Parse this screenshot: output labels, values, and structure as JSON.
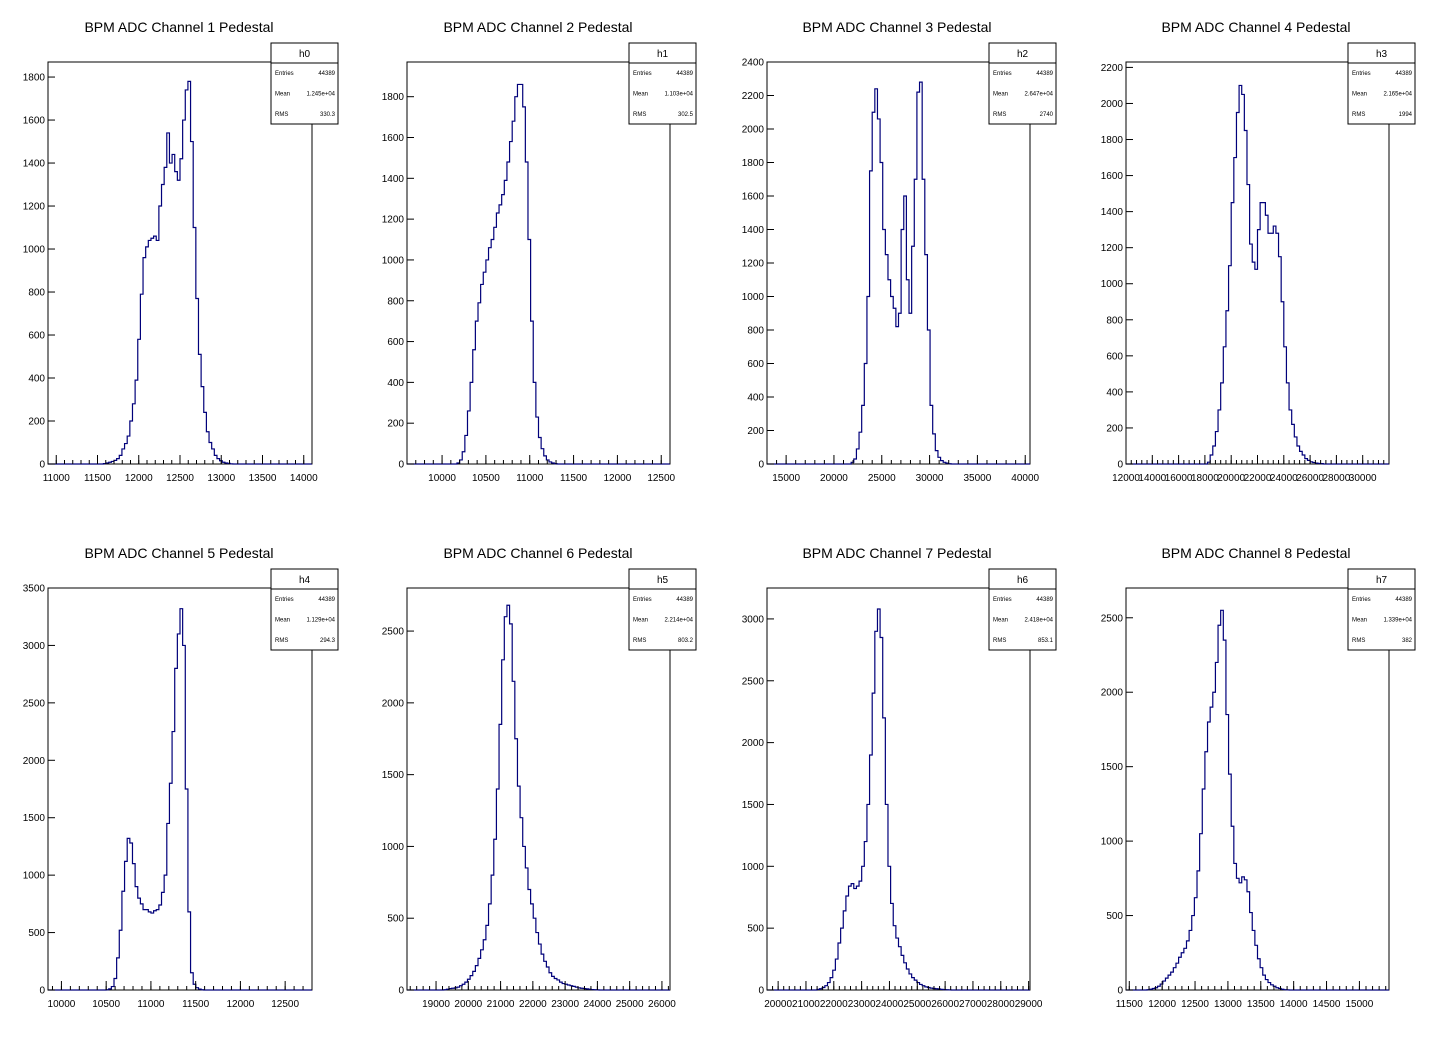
{
  "chart_data": [
    {
      "type": "histogram",
      "title": "BPM ADC Channel 1 Pedestal",
      "stats": {
        "name": "h0",
        "rows": [
          [
            "Entries",
            "44389"
          ],
          [
            "Mean",
            "1.245e+04"
          ],
          [
            "RMS",
            "330.3"
          ]
        ]
      },
      "xlim": [
        10900,
        14100
      ],
      "ylim": [
        0,
        1870
      ],
      "xticks": [
        11000,
        11500,
        12000,
        12500,
        13000,
        13500,
        14000
      ],
      "xtick_labels": [
        "11000",
        "11500",
        "12000",
        "12500",
        "13000",
        "13500",
        "14000"
      ],
      "yticks": [
        0,
        200,
        400,
        600,
        800,
        1000,
        1200,
        1400,
        1600,
        1800
      ],
      "bin_width": 32,
      "values": [
        0,
        0,
        0,
        0,
        0,
        0,
        0,
        0,
        0,
        0,
        0,
        0,
        0,
        0,
        0,
        0,
        0,
        0,
        0,
        0,
        0,
        2,
        5,
        8,
        12,
        17,
        25,
        40,
        70,
        95,
        130,
        200,
        280,
        390,
        580,
        790,
        960,
        1010,
        1040,
        1050,
        1060,
        1040,
        1200,
        1300,
        1380,
        1540,
        1400,
        1440,
        1360,
        1320,
        1420,
        1600,
        1740,
        1780,
        1500,
        1100,
        770,
        510,
        360,
        240,
        150,
        100,
        70,
        40,
        25,
        15,
        8,
        5,
        3,
        1,
        0,
        0,
        0,
        0,
        0,
        0,
        0,
        0,
        0,
        0,
        0,
        0,
        0,
        0,
        0,
        0,
        0,
        0,
        0,
        0,
        0,
        0,
        0,
        0,
        0,
        0,
        0,
        0,
        0,
        0
      ]
    },
    {
      "type": "histogram",
      "title": "BPM ADC Channel 2 Pedestal",
      "stats": {
        "name": "h1",
        "rows": [
          [
            "Entries",
            "44389"
          ],
          [
            "Mean",
            "1.103e+04"
          ],
          [
            "RMS",
            "302.5"
          ]
        ]
      },
      "xlim": [
        9600,
        12600
      ],
      "ylim": [
        0,
        1970
      ],
      "xticks": [
        10000,
        10500,
        11000,
        11500,
        12000,
        12500
      ],
      "xtick_labels": [
        "10000",
        "10500",
        "11000",
        "11500",
        "12000",
        "12500"
      ],
      "yticks": [
        0,
        200,
        400,
        600,
        800,
        1000,
        1200,
        1400,
        1600,
        1800
      ],
      "bin_width": 30,
      "values": [
        0,
        0,
        0,
        0,
        0,
        0,
        0,
        0,
        0,
        0,
        0,
        0,
        0,
        0,
        0,
        0,
        0,
        0,
        0,
        5,
        20,
        60,
        140,
        260,
        400,
        560,
        700,
        790,
        880,
        940,
        1000,
        1060,
        1100,
        1160,
        1230,
        1270,
        1320,
        1390,
        1480,
        1580,
        1680,
        1800,
        1860,
        1860,
        1750,
        1480,
        1100,
        700,
        400,
        230,
        130,
        75,
        40,
        20,
        10,
        5,
        2,
        0,
        0,
        0,
        0,
        0,
        0,
        0,
        0,
        0,
        0,
        0,
        0,
        0,
        0,
        0,
        0,
        0,
        0,
        0,
        0,
        0,
        0,
        0,
        0,
        0,
        0,
        0,
        0,
        0,
        0,
        0,
        0,
        0,
        0,
        0,
        0,
        0,
        0,
        0,
        0,
        0,
        0,
        0
      ]
    },
    {
      "type": "histogram",
      "title": "BPM ADC Channel 3 Pedestal",
      "stats": {
        "name": "h2",
        "rows": [
          [
            "Entries",
            "44389"
          ],
          [
            "Mean",
            "2.647e+04"
          ],
          [
            "RMS",
            "2740"
          ]
        ]
      },
      "xlim": [
        13000,
        40500
      ],
      "ylim": [
        0,
        2400
      ],
      "xticks": [
        15000,
        20000,
        25000,
        30000,
        35000,
        40000
      ],
      "xtick_labels": [
        "15000",
        "20000",
        "25000",
        "30000",
        "35000",
        "40000"
      ],
      "yticks": [
        0,
        200,
        400,
        600,
        800,
        1000,
        1200,
        1400,
        1600,
        1800,
        2000,
        2200,
        2400
      ],
      "bin_width": 275,
      "values": [
        0,
        0,
        0,
        0,
        0,
        0,
        0,
        0,
        0,
        0,
        0,
        0,
        0,
        0,
        0,
        0,
        0,
        0,
        0,
        0,
        0,
        0,
        0,
        0,
        0,
        0,
        0,
        0,
        0,
        0,
        0,
        0,
        10,
        30,
        90,
        190,
        350,
        600,
        1000,
        1750,
        2100,
        2240,
        2060,
        1800,
        1400,
        1250,
        1100,
        1000,
        930,
        820,
        900,
        1400,
        1600,
        1100,
        900,
        1300,
        1700,
        2220,
        2280,
        1700,
        1250,
        800,
        350,
        180,
        80,
        40,
        20,
        10,
        5,
        2,
        0,
        0,
        0,
        0,
        0,
        0,
        0,
        0,
        0,
        0,
        0,
        0,
        0,
        0,
        0,
        0,
        0,
        0,
        0,
        0,
        0,
        0,
        0,
        0,
        0,
        0,
        0,
        0,
        0,
        0
      ]
    },
    {
      "type": "histogram",
      "title": "BPM ADC Channel 4 Pedestal",
      "stats": {
        "name": "h3",
        "rows": [
          [
            "Entries",
            "44389"
          ],
          [
            "Mean",
            "2.165e+04"
          ],
          [
            "RMS",
            "1994"
          ]
        ]
      },
      "xlim": [
        12000,
        32000
      ],
      "ylim": [
        0,
        2230
      ],
      "xticks": [
        12000,
        14000,
        16000,
        18000,
        20000,
        22000,
        24000,
        26000,
        28000,
        30000
      ],
      "xtick_labels": [
        "12000",
        "14000",
        "16000",
        "18000",
        "20000",
        "22000",
        "24000",
        "26000",
        "28000",
        "30000"
      ],
      "yticks": [
        0,
        200,
        400,
        600,
        800,
        1000,
        1200,
        1400,
        1600,
        1800,
        2000,
        2200
      ],
      "bin_width": 200,
      "values": [
        0,
        0,
        0,
        0,
        0,
        0,
        0,
        0,
        0,
        0,
        0,
        0,
        0,
        0,
        0,
        0,
        0,
        0,
        0,
        0,
        0,
        0,
        0,
        0,
        0,
        0,
        0,
        0,
        0,
        0,
        0,
        10,
        50,
        100,
        180,
        300,
        450,
        650,
        850,
        1100,
        1450,
        1700,
        1950,
        2100,
        2050,
        1850,
        1550,
        1220,
        1120,
        1080,
        1300,
        1450,
        1450,
        1380,
        1280,
        1280,
        1320,
        1280,
        1150,
        900,
        650,
        450,
        300,
        220,
        150,
        100,
        70,
        50,
        30,
        20,
        12,
        8,
        5,
        3,
        2,
        0,
        0,
        0,
        0,
        0,
        0,
        0,
        0,
        0,
        0,
        0,
        0,
        0,
        0,
        0,
        0,
        0,
        0,
        0,
        0,
        0,
        0,
        0,
        0,
        0
      ]
    },
    {
      "type": "histogram",
      "title": "BPM ADC Channel 5 Pedestal",
      "stats": {
        "name": "h4",
        "rows": [
          [
            "Entries",
            "44389"
          ],
          [
            "Mean",
            "1.129e+04"
          ],
          [
            "RMS",
            "294.3"
          ]
        ]
      },
      "xlim": [
        9850,
        12800
      ],
      "ylim": [
        0,
        3500
      ],
      "xticks": [
        10000,
        10500,
        11000,
        11500,
        12000,
        12500
      ],
      "xtick_labels": [
        "10000",
        "10500",
        "11000",
        "11500",
        "12000",
        "12500"
      ],
      "yticks": [
        0,
        500,
        1000,
        1500,
        2000,
        2500,
        3000,
        3500
      ],
      "bin_width": 29.5,
      "values": [
        0,
        0,
        0,
        0,
        0,
        0,
        0,
        0,
        0,
        0,
        0,
        0,
        0,
        0,
        0,
        0,
        0,
        0,
        0,
        0,
        0,
        0,
        2,
        10,
        30,
        100,
        280,
        520,
        860,
        1120,
        1320,
        1280,
        1100,
        900,
        800,
        750,
        700,
        700,
        680,
        670,
        690,
        700,
        740,
        850,
        1000,
        1450,
        1800,
        2250,
        2800,
        3100,
        3320,
        3000,
        1750,
        680,
        150,
        50,
        20,
        8,
        2,
        0,
        0,
        0,
        0,
        0,
        0,
        0,
        0,
        0,
        0,
        0,
        0,
        0,
        0,
        0,
        0,
        0,
        0,
        0,
        0,
        0,
        0,
        0,
        0,
        0,
        0,
        0,
        0,
        0,
        0,
        0,
        0,
        0,
        0,
        0,
        0,
        0,
        0,
        0,
        0,
        0
      ]
    },
    {
      "type": "histogram",
      "title": "BPM ADC Channel 6 Pedestal",
      "stats": {
        "name": "h5",
        "rows": [
          [
            "Entries",
            "44389"
          ],
          [
            "Mean",
            "2.214e+04"
          ],
          [
            "RMS",
            "803.2"
          ]
        ]
      },
      "xlim": [
        18100,
        26250
      ],
      "ylim": [
        0,
        2800
      ],
      "xticks": [
        19000,
        20000,
        21000,
        22000,
        23000,
        24000,
        25000,
        26000
      ],
      "xtick_labels": [
        "19000",
        "20000",
        "21000",
        "22000",
        "23000",
        "24000",
        "25000",
        "26000"
      ],
      "yticks": [
        0,
        500,
        1000,
        1500,
        2000,
        2500
      ],
      "bin_width": 81.5,
      "values": [
        0,
        0,
        0,
        0,
        0,
        0,
        0,
        0,
        0,
        0,
        0,
        0,
        0,
        0,
        2,
        5,
        10,
        12,
        15,
        20,
        30,
        40,
        55,
        75,
        100,
        130,
        170,
        220,
        280,
        350,
        450,
        600,
        800,
        1050,
        1400,
        1850,
        2300,
        2600,
        2680,
        2550,
        2150,
        1750,
        1420,
        1200,
        1000,
        850,
        700,
        600,
        500,
        400,
        320,
        250,
        200,
        160,
        120,
        95,
        80,
        70,
        55,
        45,
        40,
        35,
        30,
        25,
        20,
        15,
        12,
        10,
        8,
        5,
        3,
        2,
        1,
        0,
        0,
        0,
        0,
        0,
        0,
        0,
        0,
        0,
        0,
        0,
        0,
        0,
        0,
        0,
        0,
        0,
        0,
        0,
        0,
        0,
        0,
        0,
        0,
        0,
        0,
        0
      ]
    },
    {
      "type": "histogram",
      "title": "BPM ADC Channel 7 Pedestal",
      "stats": {
        "name": "h6",
        "rows": [
          [
            "Entries",
            "44389"
          ],
          [
            "Mean",
            "2.418e+04"
          ],
          [
            "RMS",
            "853.1"
          ]
        ]
      },
      "xlim": [
        19600,
        29050
      ],
      "ylim": [
        0,
        3250
      ],
      "xticks": [
        20000,
        21000,
        22000,
        23000,
        24000,
        25000,
        26000,
        27000,
        28000,
        29000
      ],
      "xtick_labels": [
        "20000",
        "21000",
        "22000",
        "23000",
        "24000",
        "25000",
        "26000",
        "27000",
        "28000",
        "29000"
      ],
      "yticks": [
        0,
        500,
        1000,
        1500,
        2000,
        2500,
        3000
      ],
      "bin_width": 94.5,
      "values": [
        0,
        0,
        0,
        0,
        0,
        0,
        0,
        0,
        0,
        0,
        0,
        0,
        0,
        0,
        0,
        0,
        0,
        0,
        0,
        5,
        10,
        20,
        35,
        60,
        100,
        160,
        250,
        380,
        500,
        640,
        760,
        840,
        860,
        820,
        840,
        880,
        1000,
        1200,
        1500,
        1900,
        2400,
        2900,
        3080,
        2850,
        2200,
        1500,
        1000,
        700,
        520,
        420,
        350,
        280,
        220,
        170,
        130,
        100,
        80,
        60,
        45,
        35,
        25,
        20,
        15,
        12,
        10,
        8,
        5,
        3,
        2,
        1,
        0,
        0,
        0,
        0,
        0,
        0,
        0,
        0,
        0,
        0,
        0,
        0,
        0,
        0,
        0,
        0,
        0,
        0,
        0,
        0,
        0,
        0,
        0,
        0,
        0,
        0,
        0,
        0,
        0,
        0
      ]
    },
    {
      "type": "histogram",
      "title": "BPM ADC Channel 8 Pedestal",
      "stats": {
        "name": "h7",
        "rows": [
          [
            "Entries",
            "44389"
          ],
          [
            "Mean",
            "1.339e+04"
          ],
          [
            "RMS",
            "382"
          ]
        ]
      },
      "xlim": [
        11450,
        15450
      ],
      "ylim": [
        0,
        2700
      ],
      "xticks": [
        11500,
        12000,
        12500,
        13000,
        13500,
        14000,
        14500,
        15000
      ],
      "xtick_labels": [
        "11500",
        "12000",
        "12500",
        "13000",
        "13500",
        "14000",
        "14500",
        "15000"
      ],
      "yticks": [
        0,
        500,
        1000,
        1500,
        2000,
        2500
      ],
      "bin_width": 40,
      "values": [
        0,
        0,
        0,
        0,
        0,
        0,
        0,
        0,
        2,
        5,
        10,
        15,
        25,
        40,
        60,
        80,
        100,
        120,
        150,
        180,
        220,
        250,
        280,
        330,
        400,
        500,
        620,
        800,
        1050,
        1350,
        1600,
        1800,
        1900,
        2000,
        2200,
        2450,
        2550,
        2350,
        1850,
        1450,
        1100,
        850,
        750,
        720,
        760,
        740,
        660,
        520,
        400,
        300,
        210,
        150,
        100,
        70,
        50,
        35,
        25,
        15,
        10,
        5,
        2,
        1,
        0,
        0,
        0,
        0,
        0,
        0,
        0,
        0,
        0,
        0,
        0,
        0,
        0,
        0,
        0,
        0,
        0,
        0,
        0,
        0,
        0,
        0,
        0,
        0,
        0,
        0,
        0,
        0,
        0,
        0,
        0,
        0,
        0,
        0,
        0,
        0,
        0,
        0
      ]
    }
  ]
}
